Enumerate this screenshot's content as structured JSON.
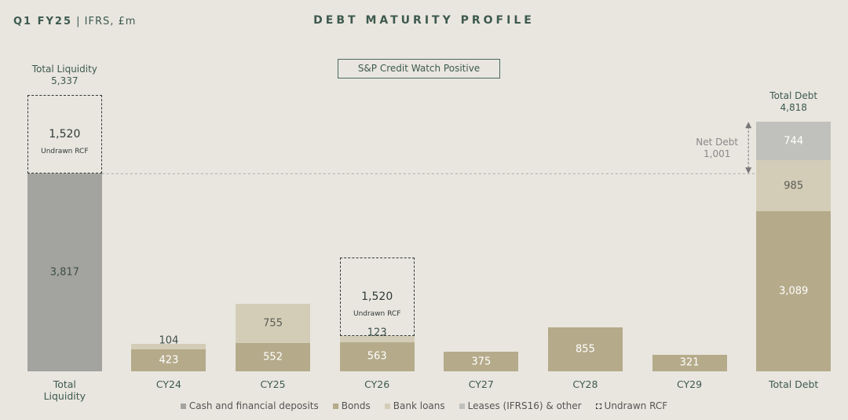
{
  "header": {
    "period": "Q1 FY25",
    "basis": "| IFRS, £m"
  },
  "chart_data": {
    "type": "stacked_bar",
    "title": "DEBT MATURITY PROFILE",
    "annotation": "S&P Credit Watch Positive",
    "categories": [
      "Total Liquidity",
      "CY24",
      "CY25",
      "CY26",
      "CY27",
      "CY28",
      "CY29",
      "Total Debt"
    ],
    "series": [
      {
        "name": "Cash and financial deposits",
        "color": "#a3a3a0",
        "label_color": "#3f4f49",
        "values": [
          3817,
          null,
          null,
          null,
          null,
          null,
          null,
          null
        ],
        "value_labels": [
          "3,817",
          null,
          null,
          null,
          null,
          null,
          null,
          null
        ]
      },
      {
        "name": "Bonds",
        "color": "#b5aa8a",
        "label_color": "#ffffff",
        "values": [
          null,
          423,
          552,
          563,
          375,
          855,
          321,
          3089
        ],
        "value_labels": [
          null,
          null,
          null,
          null,
          null,
          null,
          null,
          "3,089"
        ]
      },
      {
        "name": "Bank loans",
        "color": "#d3cdb8",
        "label_color": "#5a5a52",
        "values": [
          null,
          104,
          755,
          123,
          null,
          null,
          null,
          985
        ]
      },
      {
        "name": "Leases (IFRS16) & other",
        "color": "#c0c0bc",
        "label_color": "#ffffff",
        "values": [
          null,
          null,
          null,
          null,
          null,
          null,
          null,
          744
        ]
      },
      {
        "name": "Undrawn RCF",
        "color": "#2f3a36",
        "dashed": true,
        "label_color": "#2f3a36",
        "values": [
          1520,
          null,
          null,
          1520,
          null,
          null,
          null,
          null
        ],
        "value_labels": [
          "1,520",
          null,
          null,
          "1,520",
          null,
          null,
          null,
          null
        ]
      }
    ],
    "totals": [
      {
        "label": "Total Liquidity",
        "value": 5337,
        "value_label": "5,337"
      },
      {
        "label": "Total Debt",
        "value": 4818,
        "value_label": "4,818"
      }
    ],
    "net_debt": {
      "label": "Net Debt",
      "value": 1001,
      "value_label": "1,001"
    }
  }
}
